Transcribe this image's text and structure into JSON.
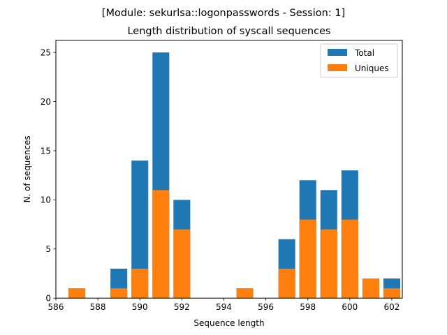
{
  "chart_data": {
    "type": "bar",
    "suptitle": "[Module: sekurlsa::logonpasswords - Session: 1]",
    "title": "Length distribution of syscall sequences",
    "xlabel": "Sequence length",
    "ylabel": "N. of sequences",
    "xlim": [
      586,
      602.5
    ],
    "ylim": [
      0,
      26.25
    ],
    "xticks": [
      586,
      588,
      590,
      592,
      594,
      596,
      598,
      600,
      602
    ],
    "yticks": [
      0,
      5,
      10,
      15,
      20,
      25
    ],
    "grid": false,
    "legend_position": "top-right",
    "x": [
      587,
      589,
      590,
      591,
      592,
      595,
      597,
      598,
      599,
      600,
      601,
      602
    ],
    "series": [
      {
        "name": "Total",
        "color": "#1f77b4",
        "values": [
          1,
          3,
          14,
          25,
          10,
          1,
          6,
          12,
          11,
          13,
          2,
          2
        ]
      },
      {
        "name": "Uniques",
        "color": "#ff7f0e",
        "values": [
          1,
          1,
          3,
          11,
          7,
          1,
          3,
          8,
          7,
          8,
          2,
          1
        ]
      }
    ]
  }
}
